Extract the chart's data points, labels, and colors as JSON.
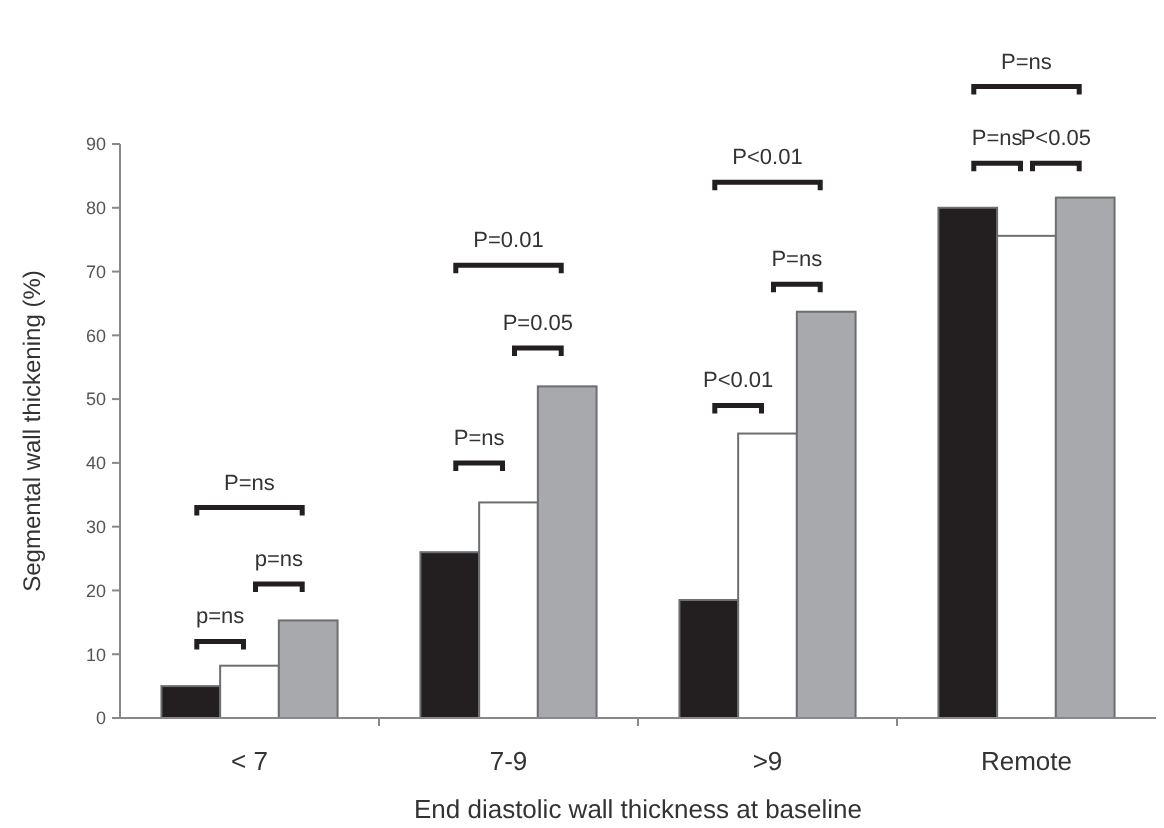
{
  "chart_data": {
    "type": "bar",
    "xlabel": "End diastolic wall thickness at baseline",
    "ylabel": "Segmental wall thickening (%)",
    "categories": [
      "< 7",
      "7-9",
      ">9",
      "Remote"
    ],
    "series": [
      {
        "color": "#231f20",
        "values": [
          5,
          26,
          18.5,
          80
        ]
      },
      {
        "color": "#ffffff",
        "values": [
          8.2,
          33.8,
          44.6,
          75.6
        ]
      },
      {
        "color": "#a7a9ac",
        "values": [
          15.3,
          52,
          63.7,
          81.6
        ]
      }
    ],
    "ylim": [
      0,
      90
    ],
    "yticks": [
      0,
      10,
      20,
      30,
      40,
      50,
      60,
      70,
      80,
      90
    ],
    "annotations": [
      "p=ns",
      "p=ns",
      "P=ns",
      "P=ns",
      "P=0.05",
      "P=0.01",
      "P<0.01",
      "P=ns",
      "P<0.01",
      "P=ns",
      "P<0.05",
      "P=ns"
    ]
  }
}
